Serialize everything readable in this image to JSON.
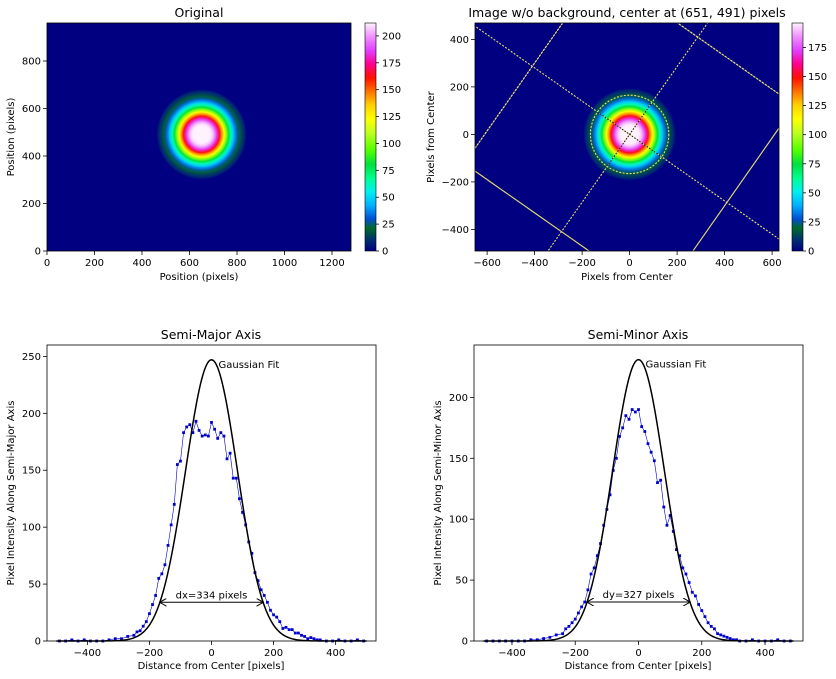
{
  "chart_data": [
    {
      "type": "heatmap",
      "title": "Original",
      "xlabel": "Position (pixels)",
      "ylabel": "Position (pixels)",
      "xlim": [
        0,
        1280
      ],
      "ylim": [
        960,
        0
      ],
      "xticks": [
        0,
        200,
        400,
        600,
        800,
        1000,
        1200
      ],
      "yticks": [
        0,
        200,
        400,
        600,
        800
      ],
      "beam_center": [
        651,
        491
      ],
      "colormap": "gist_ncar",
      "colorbar": {
        "min": 0,
        "max": 212,
        "ticks": [
          0,
          25,
          50,
          75,
          100,
          125,
          150,
          175,
          200
        ]
      }
    },
    {
      "type": "heatmap",
      "title": "Image w/o background, center at (651, 491) pixels",
      "xlabel": "Pixels from Center",
      "ylabel": "Pixels from Center",
      "xlim": [
        -651,
        629
      ],
      "ylim": [
        469,
        -491
      ],
      "xticks": [
        -600,
        -400,
        -200,
        0,
        200,
        400,
        600
      ],
      "yticks": [
        -400,
        -200,
        0,
        200,
        400
      ],
      "rotation_deg": -35,
      "ellipse_radius": 165,
      "colormap": "gist_ncar",
      "colorbar": {
        "min": 0,
        "max": 196,
        "ticks": [
          0,
          25,
          50,
          75,
          100,
          125,
          150,
          175
        ]
      }
    },
    {
      "type": "line",
      "title": "Semi-Major Axis",
      "xlabel": "Distance from Center [pixels]",
      "ylabel": "Pixel Intensity Along Semi-Major Axis",
      "xlim": [
        -530,
        530
      ],
      "ylim": [
        0,
        260
      ],
      "xticks": [
        -400,
        -200,
        0,
        200,
        400
      ],
      "yticks": [
        0,
        50,
        100,
        150,
        200,
        250
      ],
      "fit_label": "Gaussian Fit",
      "width_label": "dx=334 pixels",
      "fit": {
        "amplitude": 247,
        "center": 0,
        "diameter": 334
      },
      "width_arrow_y": 34,
      "series": [
        {
          "color": "#0000cc",
          "x": [
            -490,
            -470,
            -450,
            -430,
            -410,
            -390,
            -370,
            -350,
            -330,
            -310,
            -290,
            -270,
            -250,
            -240,
            -230,
            -220,
            -210,
            -200,
            -190,
            -180,
            -170,
            -160,
            -150,
            -140,
            -130,
            -120,
            -110,
            -100,
            -90,
            -80,
            -70,
            -60,
            -50,
            -40,
            -30,
            -20,
            -10,
            0,
            10,
            20,
            30,
            40,
            50,
            60,
            70,
            80,
            90,
            100,
            110,
            120,
            130,
            140,
            150,
            160,
            170,
            180,
            190,
            200,
            210,
            220,
            230,
            240,
            250,
            260,
            270,
            280,
            290,
            300,
            310,
            320,
            330,
            340,
            350,
            370,
            390,
            410,
            430,
            450,
            470,
            490
          ],
          "y": [
            0,
            0,
            1,
            0,
            1,
            0,
            0,
            0,
            1,
            2,
            2,
            4,
            5,
            8,
            9,
            13,
            17,
            24,
            32,
            40,
            55,
            59,
            67,
            84,
            102,
            120,
            155,
            158,
            183,
            188,
            190,
            183,
            193,
            185,
            180,
            181,
            180,
            192,
            186,
            178,
            183,
            180,
            160,
            165,
            143,
            143,
            125,
            113,
            102,
            87,
            77,
            60,
            53,
            45,
            40,
            34,
            27,
            23,
            21,
            17,
            11,
            12,
            10,
            10,
            7,
            7,
            5,
            4,
            2,
            3,
            2,
            1,
            1,
            0,
            0,
            1,
            0,
            0,
            1,
            0
          ]
        }
      ]
    },
    {
      "type": "line",
      "title": "Semi-Minor Axis",
      "xlabel": "Distance from Center [pixels]",
      "ylabel": "Pixel Intensity Along Semi-Minor Axis",
      "xlim": [
        -520,
        520
      ],
      "ylim": [
        0,
        243
      ],
      "xticks": [
        -400,
        -200,
        0,
        200,
        400
      ],
      "yticks": [
        0,
        50,
        100,
        150,
        200
      ],
      "fit_label": "Gaussian Fit",
      "width_label": "dy=327 pixels",
      "fit": {
        "amplitude": 231,
        "center": 0,
        "diameter": 327
      },
      "width_arrow_y": 32,
      "series": [
        {
          "color": "#0000cc",
          "x": [
            -480,
            -460,
            -440,
            -420,
            -400,
            -380,
            -360,
            -340,
            -320,
            -300,
            -280,
            -260,
            -240,
            -230,
            -220,
            -210,
            -200,
            -190,
            -180,
            -170,
            -160,
            -150,
            -140,
            -130,
            -120,
            -110,
            -100,
            -90,
            -80,
            -70,
            -60,
            -50,
            -40,
            -30,
            -20,
            -10,
            0,
            10,
            20,
            30,
            40,
            50,
            60,
            70,
            80,
            90,
            100,
            110,
            120,
            130,
            140,
            150,
            160,
            170,
            180,
            190,
            200,
            210,
            220,
            230,
            240,
            250,
            260,
            270,
            280,
            290,
            300,
            310,
            320,
            340,
            360,
            380,
            400,
            420,
            440,
            460,
            480
          ],
          "y": [
            0,
            0,
            0,
            0,
            0,
            0,
            0,
            1,
            1,
            2,
            3,
            5,
            6,
            10,
            12,
            15,
            18,
            23,
            28,
            32,
            42,
            55,
            60,
            70,
            80,
            95,
            108,
            120,
            140,
            150,
            168,
            175,
            185,
            182,
            190,
            188,
            190,
            176,
            172,
            162,
            155,
            148,
            130,
            132,
            110,
            95,
            103,
            90,
            75,
            70,
            60,
            55,
            48,
            40,
            37,
            30,
            25,
            20,
            15,
            12,
            10,
            6,
            5,
            4,
            3,
            2,
            1,
            1,
            0,
            0,
            1,
            0,
            0,
            0,
            1,
            0,
            0
          ]
        }
      ]
    }
  ]
}
